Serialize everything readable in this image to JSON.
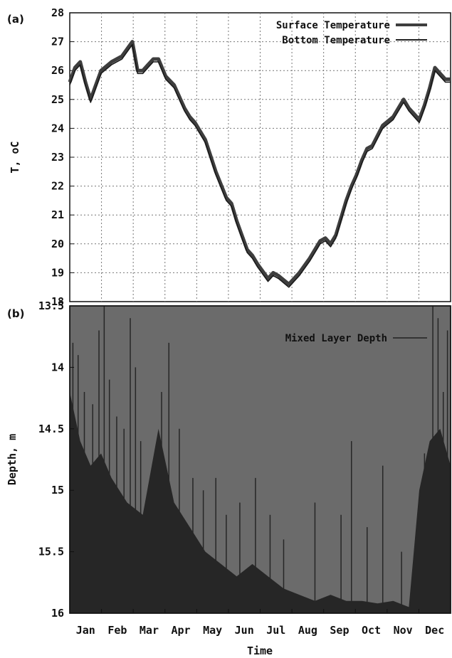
{
  "chart_data": [
    {
      "panel_label": "(a)",
      "type": "line",
      "ylabel": "T, oC",
      "xlabel": "",
      "ylim": [
        18,
        28
      ],
      "yticks": [
        18,
        19,
        20,
        21,
        22,
        23,
        24,
        25,
        26,
        27,
        28
      ],
      "grid": true,
      "legend_placement": "top-right",
      "x_unit": "day of year",
      "xlim": [
        0,
        365
      ],
      "series": [
        {
          "name": "Surface Temperature",
          "x": [
            0,
            5,
            10,
            15,
            20,
            25,
            30,
            40,
            50,
            60,
            62,
            65,
            70,
            75,
            80,
            85,
            92,
            100,
            110,
            115,
            120,
            130,
            140,
            150,
            155,
            160,
            165,
            170,
            175,
            180,
            190,
            195,
            200,
            210,
            215,
            220,
            230,
            240,
            245,
            250,
            255,
            260,
            265,
            270,
            275,
            280,
            285,
            290,
            300,
            310,
            320,
            325,
            330,
            335,
            340,
            345,
            350,
            355,
            360,
            365
          ],
          "values": [
            25.6,
            26.1,
            26.3,
            25.6,
            25.0,
            25.5,
            26.0,
            26.3,
            26.5,
            27.0,
            26.6,
            26.0,
            26.0,
            26.2,
            26.4,
            26.4,
            25.8,
            25.5,
            24.7,
            24.4,
            24.2,
            23.6,
            22.5,
            21.6,
            21.4,
            20.8,
            20.3,
            19.8,
            19.6,
            19.3,
            18.8,
            19.0,
            18.9,
            18.6,
            18.8,
            19.0,
            19.5,
            20.1,
            20.2,
            20.0,
            20.3,
            20.9,
            21.5,
            22.0,
            22.4,
            22.9,
            23.3,
            23.4,
            24.1,
            24.4,
            25.0,
            24.7,
            24.5,
            24.3,
            24.8,
            25.4,
            26.1,
            25.9,
            25.7,
            25.7
          ]
        },
        {
          "name": "Bottom Temperature",
          "x": [
            0,
            5,
            10,
            15,
            20,
            25,
            30,
            40,
            50,
            60,
            62,
            65,
            70,
            75,
            80,
            85,
            92,
            100,
            110,
            115,
            120,
            130,
            140,
            150,
            155,
            160,
            165,
            170,
            175,
            180,
            190,
            195,
            200,
            210,
            215,
            220,
            230,
            240,
            245,
            250,
            255,
            260,
            265,
            270,
            275,
            280,
            285,
            290,
            300,
            310,
            320,
            325,
            330,
            335,
            340,
            345,
            350,
            355,
            360,
            365
          ],
          "values": [
            25.5,
            26.0,
            26.2,
            25.5,
            24.9,
            25.4,
            25.9,
            26.2,
            26.4,
            26.9,
            26.5,
            25.9,
            25.9,
            26.1,
            26.3,
            26.3,
            25.7,
            25.4,
            24.6,
            24.3,
            24.1,
            23.5,
            22.4,
            21.5,
            21.3,
            20.7,
            20.2,
            19.7,
            19.5,
            19.2,
            18.7,
            18.9,
            18.8,
            18.5,
            18.7,
            18.9,
            19.4,
            20.0,
            20.1,
            19.9,
            20.2,
            20.8,
            21.4,
            21.9,
            22.3,
            22.8,
            23.2,
            23.3,
            24.0,
            24.3,
            24.9,
            24.6,
            24.4,
            24.2,
            24.7,
            25.3,
            26.0,
            25.8,
            25.6,
            25.6
          ]
        }
      ]
    },
    {
      "panel_label": "(b)",
      "type": "bar",
      "ylabel": "Depth, m",
      "xlabel": "Time",
      "ylim": [
        13.5,
        16
      ],
      "y_inverted": true,
      "yticks": [
        "13.5",
        "14",
        "14.5",
        "15",
        "15.5",
        "16"
      ],
      "categories": [
        "Jan",
        "Feb",
        "Mar",
        "Apr",
        "May",
        "Jun",
        "Jul",
        "Aug",
        "Sep",
        "Oct",
        "Nov",
        "Dec"
      ],
      "legend_placement": "top-right",
      "series": [
        {
          "name": "Mixed Layer Depth",
          "envelope_x": [
            0,
            10,
            20,
            30,
            40,
            55,
            70,
            85,
            100,
            115,
            130,
            145,
            160,
            175,
            190,
            205,
            220,
            235,
            250,
            265,
            280,
            295,
            310,
            325,
            335,
            345,
            355,
            365
          ],
          "envelope_values": [
            14.2,
            14.6,
            14.8,
            14.7,
            14.9,
            15.1,
            15.2,
            14.5,
            15.1,
            15.3,
            15.5,
            15.6,
            15.7,
            15.6,
            15.7,
            15.8,
            15.85,
            15.9,
            15.85,
            15.9,
            15.9,
            15.92,
            15.9,
            15.95,
            15.0,
            14.6,
            14.5,
            14.8
          ],
          "spike_x": [
            3,
            8,
            14,
            22,
            28,
            33,
            38,
            45,
            52,
            58,
            63,
            68,
            80,
            88,
            95,
            105,
            118,
            128,
            140,
            150,
            163,
            178,
            192,
            205,
            235,
            260,
            270,
            285,
            300,
            318,
            340,
            348,
            353,
            358,
            362
          ],
          "spike_values": [
            13.8,
            13.9,
            14.2,
            14.3,
            13.7,
            13.5,
            14.1,
            14.4,
            14.5,
            13.6,
            14.0,
            14.6,
            14.8,
            14.2,
            13.8,
            14.5,
            14.9,
            15.0,
            14.9,
            15.2,
            15.1,
            14.9,
            15.2,
            15.4,
            15.1,
            15.2,
            14.6,
            15.3,
            14.8,
            15.5,
            14.7,
            13.5,
            13.6,
            14.2,
            13.7
          ]
        }
      ]
    }
  ]
}
